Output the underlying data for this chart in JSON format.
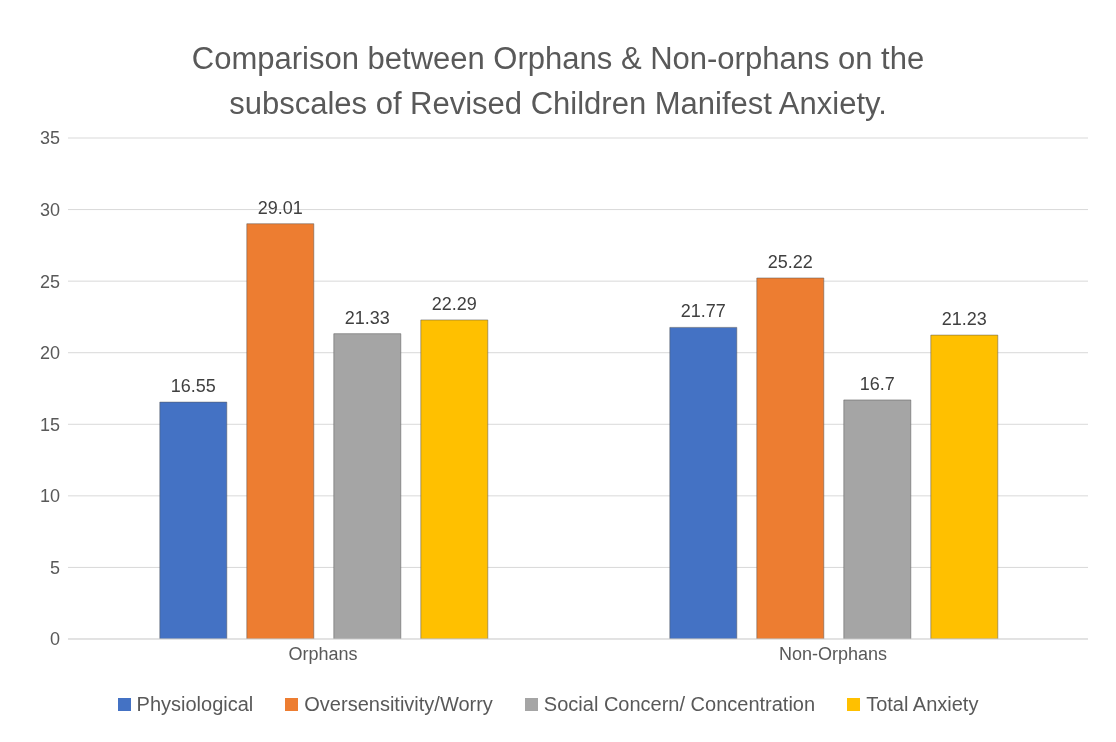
{
  "chart_data": {
    "type": "bar",
    "title": "Comparison between Orphans & Non-orphans on the subscales of Revised Children Manifest Anxiety.",
    "categories": [
      "Orphans",
      "Non-Orphans"
    ],
    "series": [
      {
        "name": "Physiological",
        "color": "#4472c4",
        "values": [
          16.55,
          21.77
        ]
      },
      {
        "name": "Oversensitivity/Worry",
        "color": "#ed7d31",
        "values": [
          29.01,
          25.22
        ]
      },
      {
        "name": "Social Concern/ Concentration",
        "color": "#a5a5a5",
        "values": [
          21.33,
          16.7
        ]
      },
      {
        "name": "Total Anxiety",
        "color": "#ffc000",
        "values": [
          22.29,
          21.23
        ]
      }
    ],
    "ylim": [
      0,
      35
    ],
    "yticks": [
      0,
      5,
      10,
      15,
      20,
      25,
      30,
      35
    ],
    "grid": "y",
    "legend": "bottom",
    "data_labels": true
  }
}
